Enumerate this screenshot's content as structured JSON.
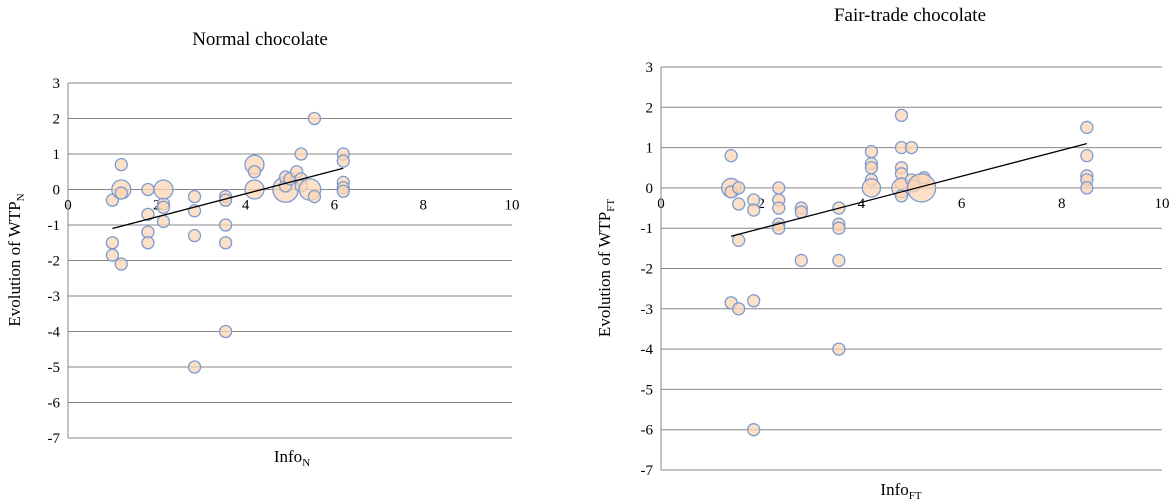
{
  "chart_data": [
    {
      "type": "scatter",
      "title": "Normal chocolate",
      "xlabel": "Info",
      "xlabel_sub": "N",
      "ylabel": "Evolution of  WTP",
      "ylabel_sub": "N",
      "xlim": [
        0,
        10
      ],
      "ylim": [
        -7,
        3
      ],
      "xticks": [
        0,
        2,
        4,
        6,
        8,
        10
      ],
      "yticks": [
        3,
        2,
        1,
        0,
        -1,
        -2,
        -3,
        -4,
        -5,
        -6,
        -7
      ],
      "grid": "horizontal",
      "marker_fill": "#fcd5b5",
      "marker_stroke": "#7b9bd1",
      "trendline_color": "#000000",
      "trendline": {
        "x": [
          1,
          6.2
        ],
        "y": [
          -1.1,
          0.6
        ]
      },
      "points": [
        {
          "x": 1.0,
          "y": -0.3,
          "r": 1
        },
        {
          "x": 1.2,
          "y": 0.7,
          "r": 1
        },
        {
          "x": 1.2,
          "y": 0.0,
          "r": 2.5
        },
        {
          "x": 1.0,
          "y": -1.5,
          "r": 1
        },
        {
          "x": 1.0,
          "y": -1.85,
          "r": 1
        },
        {
          "x": 1.2,
          "y": -2.1,
          "r": 1
        },
        {
          "x": 1.2,
          "y": -0.1,
          "r": 1
        },
        {
          "x": 1.8,
          "y": -0.7,
          "r": 1
        },
        {
          "x": 1.8,
          "y": 0.0,
          "r": 1
        },
        {
          "x": 1.8,
          "y": -1.2,
          "r": 1
        },
        {
          "x": 1.8,
          "y": -1.5,
          "r": 1
        },
        {
          "x": 2.15,
          "y": -0.4,
          "r": 1
        },
        {
          "x": 2.15,
          "y": -0.5,
          "r": 1
        },
        {
          "x": 2.15,
          "y": -0.9,
          "r": 1
        },
        {
          "x": 2.15,
          "y": 0.0,
          "r": 2.5
        },
        {
          "x": 2.85,
          "y": -0.2,
          "r": 1
        },
        {
          "x": 2.85,
          "y": -0.6,
          "r": 1
        },
        {
          "x": 2.85,
          "y": -1.3,
          "r": 1
        },
        {
          "x": 2.85,
          "y": -5.0,
          "r": 1
        },
        {
          "x": 3.55,
          "y": -0.2,
          "r": 1
        },
        {
          "x": 3.55,
          "y": -0.3,
          "r": 1
        },
        {
          "x": 3.55,
          "y": -1.0,
          "r": 1
        },
        {
          "x": 3.55,
          "y": -1.5,
          "r": 1
        },
        {
          "x": 3.55,
          "y": -4.0,
          "r": 1
        },
        {
          "x": 4.2,
          "y": 0.7,
          "r": 2.5
        },
        {
          "x": 4.2,
          "y": 0.0,
          "r": 2.5
        },
        {
          "x": 4.2,
          "y": 0.5,
          "r": 1
        },
        {
          "x": 4.9,
          "y": 0.0,
          "r": 4.5
        },
        {
          "x": 4.9,
          "y": 0.1,
          "r": 1
        },
        {
          "x": 4.9,
          "y": 0.35,
          "r": 1
        },
        {
          "x": 5.0,
          "y": 0.3,
          "r": 1
        },
        {
          "x": 5.15,
          "y": 0.5,
          "r": 1
        },
        {
          "x": 5.25,
          "y": 1.0,
          "r": 1
        },
        {
          "x": 5.25,
          "y": 0.3,
          "r": 1
        },
        {
          "x": 5.25,
          "y": 0.1,
          "r": 1
        },
        {
          "x": 5.45,
          "y": 0.0,
          "r": 3.2
        },
        {
          "x": 5.55,
          "y": -0.2,
          "r": 1
        },
        {
          "x": 5.55,
          "y": 2.0,
          "r": 1
        },
        {
          "x": 6.2,
          "y": 1.0,
          "r": 1
        },
        {
          "x": 6.2,
          "y": 0.8,
          "r": 1
        },
        {
          "x": 6.2,
          "y": 0.2,
          "r": 1
        },
        {
          "x": 6.2,
          "y": 0.05,
          "r": 1
        },
        {
          "x": 6.2,
          "y": -0.05,
          "r": 1
        }
      ]
    },
    {
      "type": "scatter",
      "title": "Fair-trade chocolate",
      "xlabel": "Info",
      "xlabel_sub": "FT",
      "ylabel": "Evolution of  WTP",
      "ylabel_sub": "FT",
      "xlim": [
        0,
        10
      ],
      "ylim": [
        -7,
        3
      ],
      "xticks": [
        0,
        2,
        4,
        6,
        8,
        10
      ],
      "yticks": [
        3,
        2,
        1,
        0,
        -1,
        -2,
        -3,
        -4,
        -5,
        -6,
        -7
      ],
      "grid": "horizontal",
      "marker_fill": "#fcd5b5",
      "marker_stroke": "#7b9bd1",
      "trendline_color": "#000000",
      "trendline": {
        "x": [
          1.4,
          8.5
        ],
        "y": [
          -1.2,
          1.1
        ]
      },
      "points": [
        {
          "x": 1.4,
          "y": 0.8,
          "r": 1
        },
        {
          "x": 1.4,
          "y": 0.0,
          "r": 2.5
        },
        {
          "x": 1.4,
          "y": -0.1,
          "r": 1
        },
        {
          "x": 1.4,
          "y": -2.85,
          "r": 1
        },
        {
          "x": 1.55,
          "y": -3.0,
          "r": 1
        },
        {
          "x": 1.55,
          "y": -0.4,
          "r": 1
        },
        {
          "x": 1.55,
          "y": -1.3,
          "r": 1
        },
        {
          "x": 1.55,
          "y": 0.0,
          "r": 1
        },
        {
          "x": 1.85,
          "y": -0.3,
          "r": 1
        },
        {
          "x": 1.85,
          "y": -0.55,
          "r": 1
        },
        {
          "x": 1.85,
          "y": -2.8,
          "r": 1
        },
        {
          "x": 1.85,
          "y": -6.0,
          "r": 1
        },
        {
          "x": 2.35,
          "y": 0.0,
          "r": 1
        },
        {
          "x": 2.35,
          "y": -0.3,
          "r": 1
        },
        {
          "x": 2.35,
          "y": -0.5,
          "r": 1
        },
        {
          "x": 2.35,
          "y": -0.9,
          "r": 1
        },
        {
          "x": 2.35,
          "y": -1.0,
          "r": 1
        },
        {
          "x": 2.8,
          "y": -0.5,
          "r": 1
        },
        {
          "x": 2.8,
          "y": -0.6,
          "r": 1
        },
        {
          "x": 2.8,
          "y": -1.8,
          "r": 1
        },
        {
          "x": 3.55,
          "y": -0.5,
          "r": 1
        },
        {
          "x": 3.55,
          "y": -0.9,
          "r": 1
        },
        {
          "x": 3.55,
          "y": -1.0,
          "r": 1
        },
        {
          "x": 3.55,
          "y": -1.8,
          "r": 1
        },
        {
          "x": 3.55,
          "y": -4.0,
          "r": 1
        },
        {
          "x": 4.2,
          "y": 0.9,
          "r": 1
        },
        {
          "x": 4.2,
          "y": 0.6,
          "r": 1
        },
        {
          "x": 4.2,
          "y": 0.5,
          "r": 1
        },
        {
          "x": 4.2,
          "y": 0.2,
          "r": 1
        },
        {
          "x": 4.2,
          "y": 0.0,
          "r": 2.3
        },
        {
          "x": 4.8,
          "y": 1.8,
          "r": 1
        },
        {
          "x": 4.8,
          "y": 1.0,
          "r": 1
        },
        {
          "x": 4.8,
          "y": 0.5,
          "r": 1
        },
        {
          "x": 4.8,
          "y": 0.35,
          "r": 1
        },
        {
          "x": 4.8,
          "y": 0.1,
          "r": 1
        },
        {
          "x": 4.8,
          "y": 0.0,
          "r": 2.6
        },
        {
          "x": 4.8,
          "y": -0.2,
          "r": 1
        },
        {
          "x": 5.0,
          "y": 1.0,
          "r": 1
        },
        {
          "x": 5.0,
          "y": 0.2,
          "r": 1
        },
        {
          "x": 5.05,
          "y": 0.05,
          "r": 1
        },
        {
          "x": 5.25,
          "y": 0.25,
          "r": 1
        },
        {
          "x": 5.2,
          "y": 0.0,
          "r": 5.5
        },
        {
          "x": 8.5,
          "y": 1.5,
          "r": 1
        },
        {
          "x": 8.5,
          "y": 0.8,
          "r": 1
        },
        {
          "x": 8.5,
          "y": 0.3,
          "r": 1
        },
        {
          "x": 8.5,
          "y": 0.2,
          "r": 1
        },
        {
          "x": 8.5,
          "y": 0.0,
          "r": 1
        }
      ]
    }
  ]
}
